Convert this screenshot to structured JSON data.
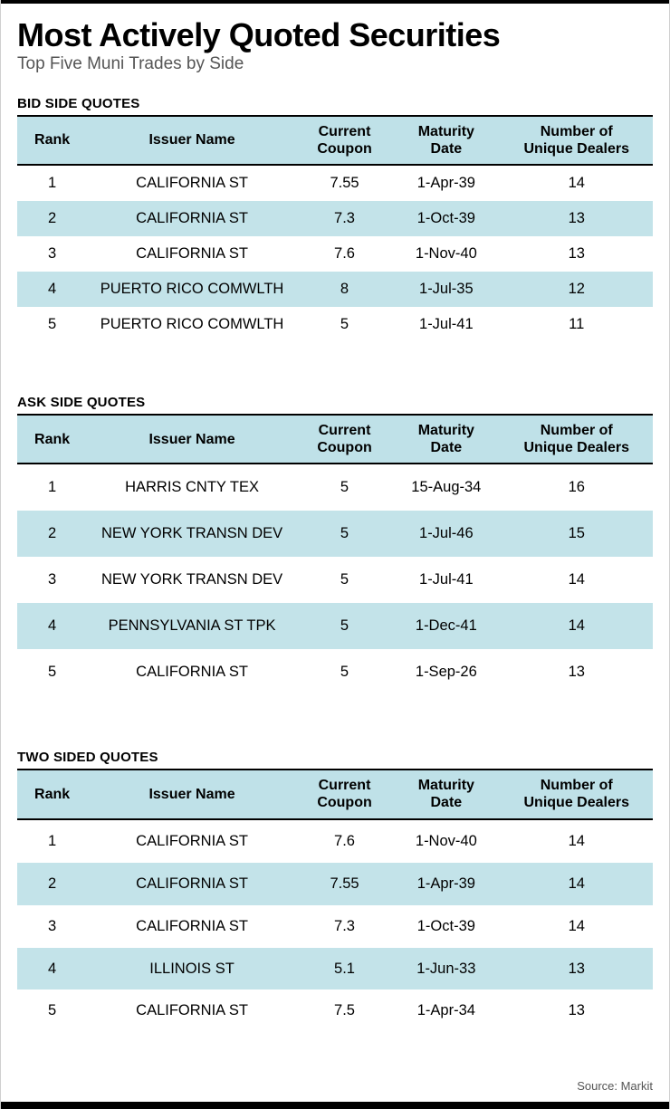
{
  "page": {
    "title": "Most Actively Quoted Securities",
    "subtitle": "Top Five Muni Trades by Side",
    "source": "Source: Markit"
  },
  "colors": {
    "header_bg": "#bfe1e8",
    "row_alt_bg": "#c3e3e9",
    "bar": "#000000"
  },
  "chart_data": [
    {
      "type": "table",
      "title": "BID SIDE QUOTES",
      "columns": [
        "Rank",
        "Issuer Name",
        "Current\nCoupon",
        "Maturity\nDate",
        "Number of\nUnique Dealers"
      ],
      "rows": [
        [
          "1",
          "CALIFORNIA ST",
          "7.55",
          "1-Apr-39",
          "14"
        ],
        [
          "2",
          "CALIFORNIA ST",
          "7.3",
          "1-Oct-39",
          "13"
        ],
        [
          "3",
          "CALIFORNIA ST",
          "7.6",
          "1-Nov-40",
          "13"
        ],
        [
          "4",
          "PUERTO RICO COMWLTH",
          "8",
          "1-Jul-35",
          "12"
        ],
        [
          "5",
          "PUERTO RICO COMWLTH",
          "5",
          "1-Jul-41",
          "11"
        ]
      ]
    },
    {
      "type": "table",
      "title": "ASK SIDE QUOTES",
      "columns": [
        "Rank",
        "Issuer Name",
        "Current\nCoupon",
        "Maturity\nDate",
        "Number of\nUnique Dealers"
      ],
      "rows": [
        [
          "1",
          "HARRIS CNTY TEX",
          "5",
          "15-Aug-34",
          "16"
        ],
        [
          "2",
          "NEW YORK TRANSN DEV",
          "5",
          "1-Jul-46",
          "15"
        ],
        [
          "3",
          "NEW YORK TRANSN DEV",
          "5",
          "1-Jul-41",
          "14"
        ],
        [
          "4",
          "PENNSYLVANIA ST TPK",
          "5",
          "1-Dec-41",
          "14"
        ],
        [
          "5",
          "CALIFORNIA ST",
          "5",
          "1-Sep-26",
          "13"
        ]
      ]
    },
    {
      "type": "table",
      "title": "TWO SIDED QUOTES",
      "columns": [
        "Rank",
        "Issuer Name",
        "Current\nCoupon",
        "Maturity\nDate",
        "Number of\nUnique Dealers"
      ],
      "rows": [
        [
          "1",
          "CALIFORNIA ST",
          "7.6",
          "1-Nov-40",
          "14"
        ],
        [
          "2",
          "CALIFORNIA ST",
          "7.55",
          "1-Apr-39",
          "14"
        ],
        [
          "3",
          "CALIFORNIA ST",
          "7.3",
          "1-Oct-39",
          "14"
        ],
        [
          "4",
          "ILLINOIS ST",
          "5.1",
          "1-Jun-33",
          "13"
        ],
        [
          "5",
          "CALIFORNIA ST",
          "7.5",
          "1-Apr-34",
          "13"
        ]
      ]
    }
  ]
}
